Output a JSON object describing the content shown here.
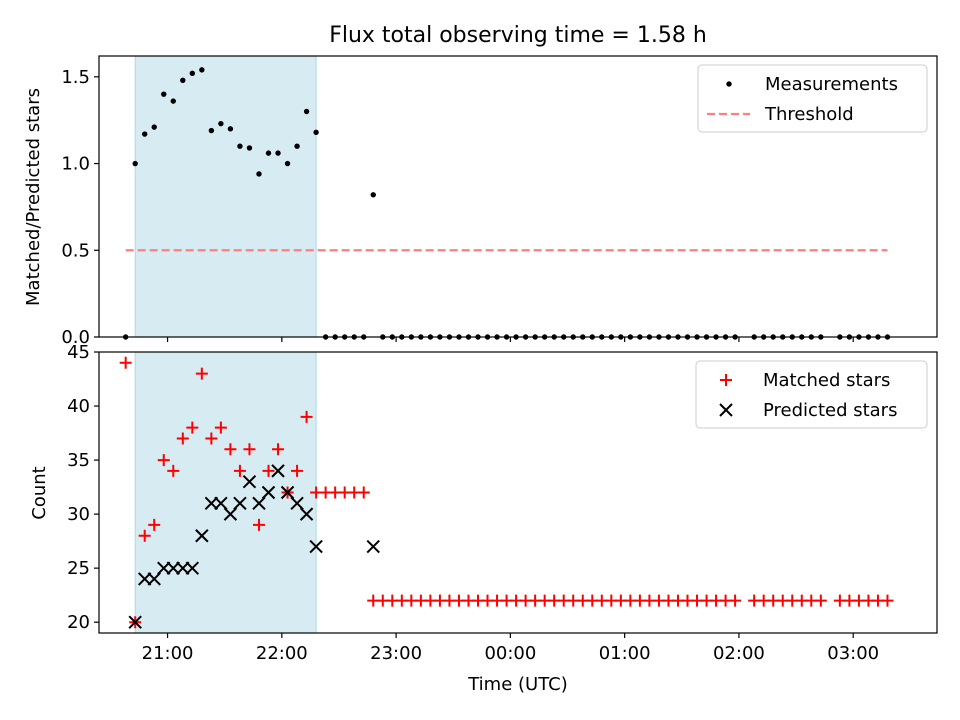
{
  "title": "Flux total observing time = 1.58 h",
  "xlabel": "Time (UTC)",
  "chart_data": [
    {
      "type": "scatter",
      "ylabel": "Matched/Predicted stars",
      "xlim": [
        "20:24",
        "03:44"
      ],
      "ylim": [
        0,
        1.62
      ],
      "yticks": [
        0.0,
        0.5,
        1.0,
        1.5
      ],
      "ytick_labels": [
        "0.0",
        "0.5",
        "1.0",
        "1.5"
      ],
      "legend_position": "top-right",
      "shaded_interval": {
        "start": "20:43",
        "end": "22:18",
        "color": "#add8e6"
      },
      "series": [
        {
          "name": "Measurements",
          "marker": "dot",
          "color": "#000000",
          "points": [
            [
              "20:38",
              0.0
            ],
            [
              "20:43",
              1.0
            ],
            [
              "20:48",
              1.17
            ],
            [
              "20:53",
              1.21
            ],
            [
              "20:58",
              1.4
            ],
            [
              "21:03",
              1.36
            ],
            [
              "21:08",
              1.48
            ],
            [
              "21:13",
              1.52
            ],
            [
              "21:18",
              1.54
            ],
            [
              "21:23",
              1.19
            ],
            [
              "21:28",
              1.23
            ],
            [
              "21:33",
              1.2
            ],
            [
              "21:38",
              1.1
            ],
            [
              "21:43",
              1.09
            ],
            [
              "21:48",
              0.94
            ],
            [
              "21:53",
              1.06
            ],
            [
              "21:58",
              1.06
            ],
            [
              "22:03",
              1.0
            ],
            [
              "22:08",
              1.1
            ],
            [
              "22:13",
              1.3
            ],
            [
              "22:18",
              1.18
            ],
            [
              "22:23",
              0.0
            ],
            [
              "22:28",
              0.0
            ],
            [
              "22:33",
              0.0
            ],
            [
              "22:38",
              0.0
            ],
            [
              "22:43",
              0.0
            ],
            [
              "22:48",
              0.82
            ],
            [
              "22:53",
              0.0
            ],
            [
              "22:58",
              0.0
            ],
            [
              "23:03",
              0.0
            ],
            [
              "23:08",
              0.0
            ],
            [
              "23:13",
              0.0
            ],
            [
              "23:18",
              0.0
            ],
            [
              "23:23",
              0.0
            ],
            [
              "23:28",
              0.0
            ],
            [
              "23:33",
              0.0
            ],
            [
              "23:38",
              0.0
            ],
            [
              "23:43",
              0.0
            ],
            [
              "23:48",
              0.0
            ],
            [
              "23:53",
              0.0
            ],
            [
              "23:58",
              0.0
            ],
            [
              "00:03",
              0.0
            ],
            [
              "00:08",
              0.0
            ],
            [
              "00:13",
              0.0
            ],
            [
              "00:18",
              0.0
            ],
            [
              "00:23",
              0.0
            ],
            [
              "00:28",
              0.0
            ],
            [
              "00:33",
              0.0
            ],
            [
              "00:38",
              0.0
            ],
            [
              "00:43",
              0.0
            ],
            [
              "00:48",
              0.0
            ],
            [
              "00:53",
              0.0
            ],
            [
              "00:58",
              0.0
            ],
            [
              "01:03",
              0.0
            ],
            [
              "01:08",
              0.0
            ],
            [
              "01:13",
              0.0
            ],
            [
              "01:18",
              0.0
            ],
            [
              "01:23",
              0.0
            ],
            [
              "01:28",
              0.0
            ],
            [
              "01:33",
              0.0
            ],
            [
              "01:38",
              0.0
            ],
            [
              "01:43",
              0.0
            ],
            [
              "01:48",
              0.0
            ],
            [
              "01:53",
              0.0
            ],
            [
              "01:58",
              0.0
            ],
            [
              "02:08",
              0.0
            ],
            [
              "02:13",
              0.0
            ],
            [
              "02:18",
              0.0
            ],
            [
              "02:23",
              0.0
            ],
            [
              "02:28",
              0.0
            ],
            [
              "02:33",
              0.0
            ],
            [
              "02:38",
              0.0
            ],
            [
              "02:43",
              0.0
            ],
            [
              "02:53",
              0.0
            ],
            [
              "02:58",
              0.0
            ],
            [
              "03:03",
              0.0
            ],
            [
              "03:08",
              0.0
            ],
            [
              "03:13",
              0.0
            ],
            [
              "03:18",
              0.0
            ]
          ]
        },
        {
          "name": "Threshold",
          "line_style": "dashed",
          "color": "#ff7f7f",
          "points": [
            [
              "20:38",
              0.5
            ],
            [
              "03:18",
              0.5
            ]
          ]
        }
      ]
    },
    {
      "type": "scatter",
      "ylabel": "Count",
      "xlim": [
        "20:24",
        "03:44"
      ],
      "ylim": [
        19,
        45
      ],
      "yticks": [
        20,
        25,
        30,
        35,
        40,
        45
      ],
      "ytick_labels": [
        "20",
        "25",
        "30",
        "35",
        "40",
        "45"
      ],
      "xticks": [
        "21:00",
        "22:00",
        "23:00",
        "00:00",
        "01:00",
        "02:00",
        "03:00"
      ],
      "xtick_labels": [
        "21:00",
        "22:00",
        "23:00",
        "00:00",
        "01:00",
        "02:00",
        "03:00"
      ],
      "legend_position": "top-right",
      "shaded_interval": {
        "start": "20:43",
        "end": "22:18",
        "color": "#add8e6"
      },
      "series": [
        {
          "name": "Matched stars",
          "marker": "plus",
          "color": "#ff0000",
          "points": [
            [
              "20:38",
              44
            ],
            [
              "20:43",
              20
            ],
            [
              "20:48",
              28
            ],
            [
              "20:53",
              29
            ],
            [
              "20:58",
              35
            ],
            [
              "21:03",
              34
            ],
            [
              "21:08",
              37
            ],
            [
              "21:13",
              38
            ],
            [
              "21:18",
              43
            ],
            [
              "21:23",
              37
            ],
            [
              "21:28",
              38
            ],
            [
              "21:33",
              36
            ],
            [
              "21:38",
              34
            ],
            [
              "21:43",
              36
            ],
            [
              "21:48",
              29
            ],
            [
              "21:53",
              34
            ],
            [
              "21:58",
              36
            ],
            [
              "22:03",
              32
            ],
            [
              "22:08",
              34
            ],
            [
              "22:13",
              39
            ],
            [
              "22:18",
              32
            ],
            [
              "22:23",
              32
            ],
            [
              "22:28",
              32
            ],
            [
              "22:33",
              32
            ],
            [
              "22:38",
              32
            ],
            [
              "22:43",
              32
            ],
            [
              "22:48",
              22
            ],
            [
              "22:53",
              22
            ],
            [
              "22:58",
              22
            ],
            [
              "23:03",
              22
            ],
            [
              "23:08",
              22
            ],
            [
              "23:13",
              22
            ],
            [
              "23:18",
              22
            ],
            [
              "23:23",
              22
            ],
            [
              "23:28",
              22
            ],
            [
              "23:33",
              22
            ],
            [
              "23:38",
              22
            ],
            [
              "23:43",
              22
            ],
            [
              "23:48",
              22
            ],
            [
              "23:53",
              22
            ],
            [
              "23:58",
              22
            ],
            [
              "00:03",
              22
            ],
            [
              "00:08",
              22
            ],
            [
              "00:13",
              22
            ],
            [
              "00:18",
              22
            ],
            [
              "00:23",
              22
            ],
            [
              "00:28",
              22
            ],
            [
              "00:33",
              22
            ],
            [
              "00:38",
              22
            ],
            [
              "00:43",
              22
            ],
            [
              "00:48",
              22
            ],
            [
              "00:53",
              22
            ],
            [
              "00:58",
              22
            ],
            [
              "01:03",
              22
            ],
            [
              "01:08",
              22
            ],
            [
              "01:13",
              22
            ],
            [
              "01:18",
              22
            ],
            [
              "01:23",
              22
            ],
            [
              "01:28",
              22
            ],
            [
              "01:33",
              22
            ],
            [
              "01:38",
              22
            ],
            [
              "01:43",
              22
            ],
            [
              "01:48",
              22
            ],
            [
              "01:53",
              22
            ],
            [
              "01:58",
              22
            ],
            [
              "02:08",
              22
            ],
            [
              "02:13",
              22
            ],
            [
              "02:18",
              22
            ],
            [
              "02:23",
              22
            ],
            [
              "02:28",
              22
            ],
            [
              "02:33",
              22
            ],
            [
              "02:38",
              22
            ],
            [
              "02:43",
              22
            ],
            [
              "02:53",
              22
            ],
            [
              "02:58",
              22
            ],
            [
              "03:03",
              22
            ],
            [
              "03:08",
              22
            ],
            [
              "03:13",
              22
            ],
            [
              "03:18",
              22
            ]
          ]
        },
        {
          "name": "Predicted stars",
          "marker": "x",
          "color": "#000000",
          "points": [
            [
              "20:43",
              20
            ],
            [
              "20:48",
              24
            ],
            [
              "20:53",
              24
            ],
            [
              "20:58",
              25
            ],
            [
              "21:03",
              25
            ],
            [
              "21:08",
              25
            ],
            [
              "21:13",
              25
            ],
            [
              "21:18",
              28
            ],
            [
              "21:23",
              31
            ],
            [
              "21:28",
              31
            ],
            [
              "21:33",
              30
            ],
            [
              "21:38",
              31
            ],
            [
              "21:43",
              33
            ],
            [
              "21:48",
              31
            ],
            [
              "21:53",
              32
            ],
            [
              "21:58",
              34
            ],
            [
              "22:03",
              32
            ],
            [
              "22:08",
              31
            ],
            [
              "22:13",
              30
            ],
            [
              "22:18",
              27
            ],
            [
              "22:48",
              27
            ]
          ]
        }
      ]
    }
  ]
}
